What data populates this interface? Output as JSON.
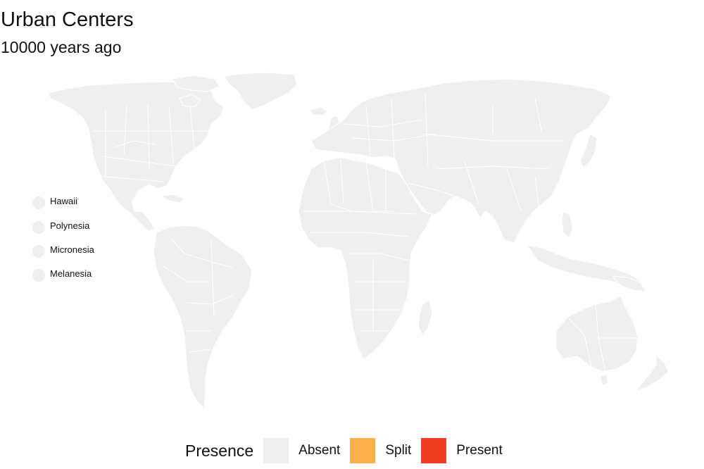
{
  "title": "Urban Centers",
  "subtitle": "10000 years ago",
  "islands": [
    {
      "name": "Hawaii",
      "status": "absent"
    },
    {
      "name": "Polynesia",
      "status": "absent"
    },
    {
      "name": "Micronesia",
      "status": "absent"
    },
    {
      "name": "Melanesia",
      "status": "absent"
    }
  ],
  "map": {
    "all_regions_status": "absent"
  },
  "legend": {
    "title": "Presence",
    "items": [
      {
        "label": "Absent",
        "color": "#efefef"
      },
      {
        "label": "Split",
        "color": "#fdb14b"
      },
      {
        "label": "Present",
        "color": "#f03d23"
      }
    ]
  }
}
